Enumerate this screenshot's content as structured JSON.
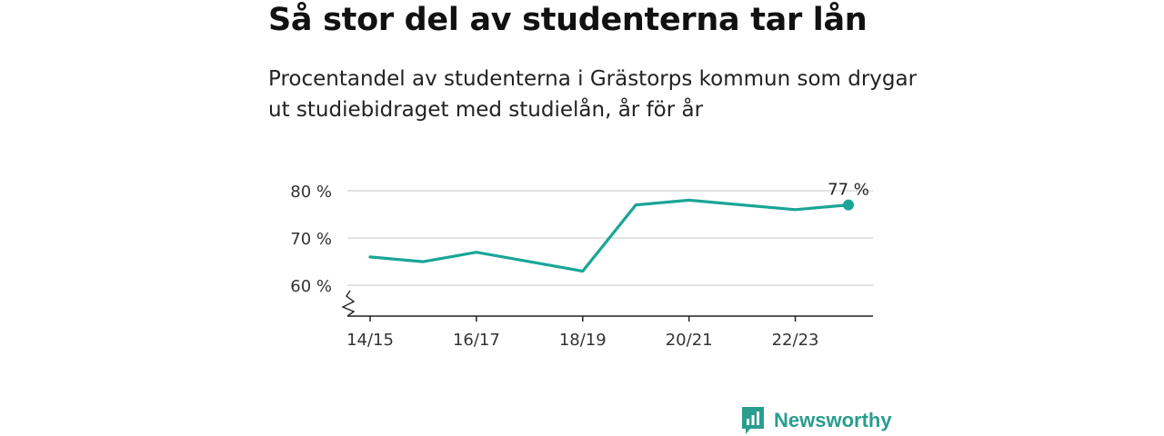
{
  "header": {
    "title": "Så stor del av studenterna tar lån",
    "subtitle": "Procentandel av studenterna i Grästorps kommun som drygar ut studiebidraget med studielån, år för år"
  },
  "brand": {
    "name": "Newsworthy",
    "icon": "newsworthy-logo-icon",
    "color": "#2a9d8f"
  },
  "chart_data": {
    "type": "line",
    "title": "Så stor del av studenterna tar lån",
    "subtitle": "Procentandel av studenterna i Grästorps kommun som drygar ut studiebidraget med studielån, år för år",
    "x": [
      "14/15",
      "15/16",
      "16/17",
      "17/18",
      "18/19",
      "19/20",
      "20/21",
      "21/22",
      "22/23",
      "23/24"
    ],
    "values": [
      66,
      65,
      67,
      65,
      63,
      77,
      78,
      77,
      76,
      77
    ],
    "x_tick_labels": [
      "14/15",
      "16/17",
      "18/19",
      "20/21",
      "22/23"
    ],
    "y_ticks": [
      60,
      70,
      80
    ],
    "y_tick_labels": [
      "60 %",
      "70 %",
      "80 %"
    ],
    "ylim": [
      53.5,
      80
    ],
    "y_axis_break": true,
    "grid": true,
    "last_value_label": "77 %",
    "line_color": "#1aa597"
  }
}
